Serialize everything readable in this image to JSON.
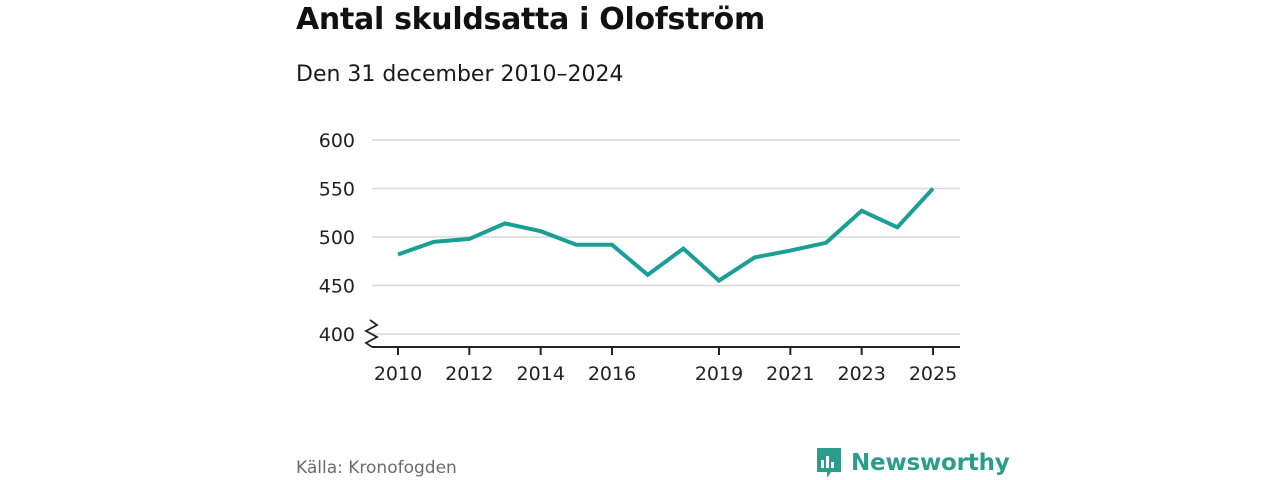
{
  "title": "Antal skuldsatta i Olofström",
  "subtitle": "Den 31 december 2010–2024",
  "source": "Källa: Kronofogden",
  "brand": {
    "name": "Newsworthy",
    "color": "#2a9d8f"
  },
  "colors": {
    "line": "#1a9e96",
    "grid": "#d9d9d9",
    "axis": "#222222"
  },
  "chart_data": {
    "type": "line",
    "title": "Antal skuldsatta i Olofström",
    "xlabel": "",
    "ylabel": "",
    "x": [
      2010,
      2011,
      2012,
      2013,
      2014,
      2015,
      2016,
      2017,
      2018,
      2019,
      2020,
      2021,
      2022,
      2023,
      2024,
      2025
    ],
    "values": [
      482,
      495,
      498,
      514,
      506,
      492,
      492,
      461,
      488,
      455,
      479,
      486,
      494,
      527,
      510,
      550
    ],
    "xticks": [
      2010,
      2012,
      2014,
      2016,
      2019,
      2021,
      2023,
      2025
    ],
    "xtick_labels": [
      "2010",
      "2012",
      "2014",
      "2016",
      "2019",
      "2021",
      "2023",
      "2025"
    ],
    "yticks": [
      400,
      450,
      500,
      550,
      600
    ],
    "ytick_labels": [
      "400",
      "450",
      "500",
      "550",
      "600"
    ],
    "ylim": [
      400,
      600
    ],
    "xlim": [
      2010,
      2025
    ],
    "axis_break": true,
    "grid": true
  }
}
